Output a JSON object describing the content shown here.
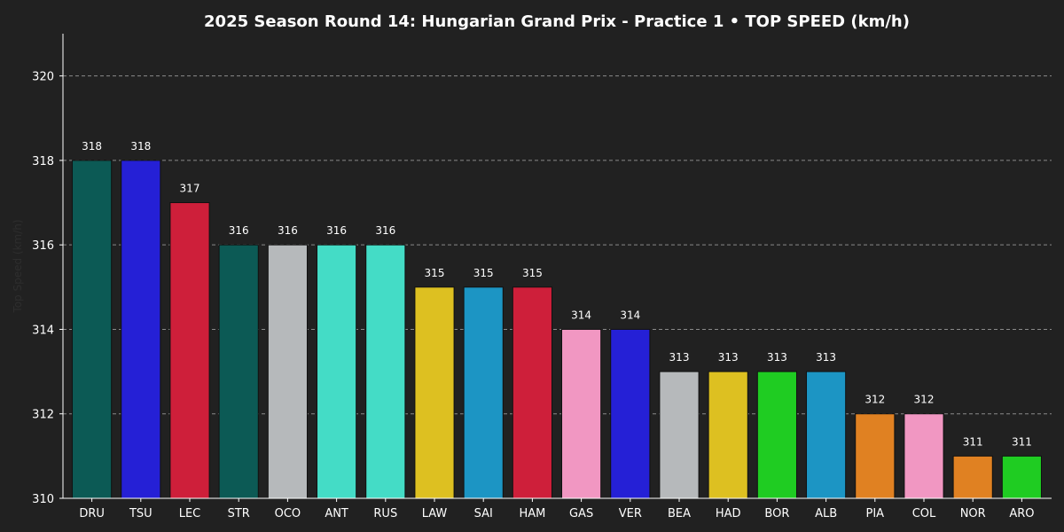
{
  "chart_data": {
    "type": "bar",
    "title": "2025 Season Round 14: Hungarian Grand Prix - Practice 1  •  TOP SPEED (km/h)",
    "ylabel": "Top Speed (km/h)",
    "categories": [
      "DRU",
      "TSU",
      "LEC",
      "STR",
      "OCO",
      "ANT",
      "RUS",
      "LAW",
      "SAI",
      "HAM",
      "GAS",
      "VER",
      "BEA",
      "HAD",
      "BOR",
      "ALB",
      "PIA",
      "COL",
      "NOR",
      "ARO"
    ],
    "values": [
      318,
      318,
      317,
      316,
      316,
      316,
      316,
      315,
      315,
      315,
      314,
      314,
      313,
      313,
      313,
      313,
      312,
      312,
      311,
      311
    ],
    "colors": [
      "#0c5a55",
      "#2520d6",
      "#ce1f3a",
      "#0c5a55",
      "#b6b9bb",
      "#44dcc6",
      "#44dcc6",
      "#ddc021",
      "#1c95c4",
      "#ce1f3a",
      "#f197c2",
      "#2520d6",
      "#b6b9bb",
      "#ddc021",
      "#1fcc22",
      "#1c95c4",
      "#e08122",
      "#f197c2",
      "#e08122",
      "#1fcc22"
    ],
    "ylim": [
      310,
      321
    ],
    "yticks": [
      310,
      312,
      314,
      316,
      318,
      320
    ],
    "grid": true
  }
}
